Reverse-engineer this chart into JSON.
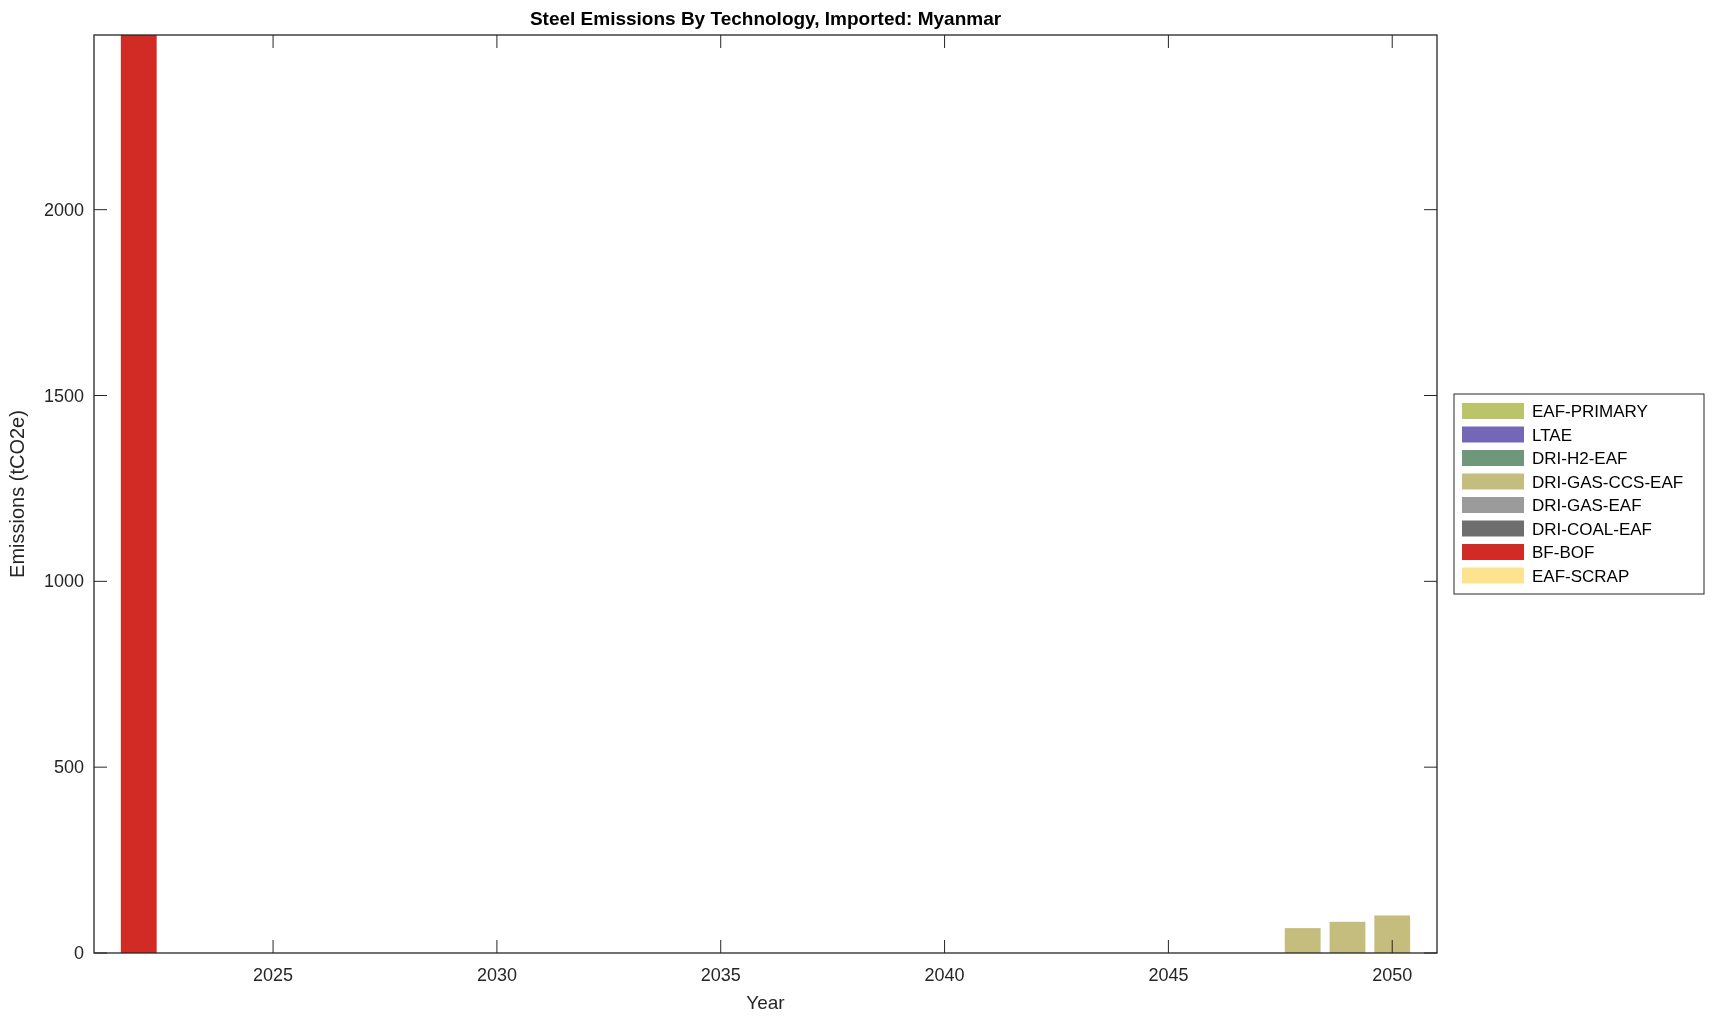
{
  "chart_data": {
    "type": "bar",
    "title": "Steel Emissions By Technology, Imported: Myanmar",
    "xlabel": "Year",
    "ylabel": "Emissions (tCO2e)",
    "stacked": true,
    "x": [
      2022,
      2048,
      2049,
      2050
    ],
    "series": [
      {
        "name": "EAF-PRIMARY",
        "color": "#bcc46a",
        "values": [
          0,
          0,
          0,
          0
        ]
      },
      {
        "name": "LTAE",
        "color": "#7467b8",
        "values": [
          0,
          0,
          0,
          0
        ]
      },
      {
        "name": "DRI-H2-EAF",
        "color": "#6f977a",
        "values": [
          0,
          0,
          0,
          0
        ]
      },
      {
        "name": "DRI-GAS-CCS-EAF",
        "color": "#c5bd7e",
        "values": [
          0,
          67,
          84,
          101
        ]
      },
      {
        "name": "DRI-GAS-EAF",
        "color": "#9b9b9b",
        "values": [
          0,
          0,
          0,
          0
        ]
      },
      {
        "name": "DRI-COAL-EAF",
        "color": "#6e6e6e",
        "values": [
          0,
          0,
          0,
          0
        ]
      },
      {
        "name": "BF-BOF",
        "color": "#d22b26",
        "values": [
          2470,
          0,
          0,
          0
        ]
      },
      {
        "name": "EAF-SCRAP",
        "color": "#fde290",
        "values": [
          0,
          0,
          0,
          0
        ]
      }
    ],
    "xlim": [
      2021,
      2051
    ],
    "xticks": [
      2025,
      2030,
      2035,
      2040,
      2045,
      2050
    ],
    "ylim": [
      0,
      2470
    ],
    "yticks": [
      0,
      500,
      1000,
      1500,
      2000
    ],
    "grid": false,
    "legend": "right"
  }
}
